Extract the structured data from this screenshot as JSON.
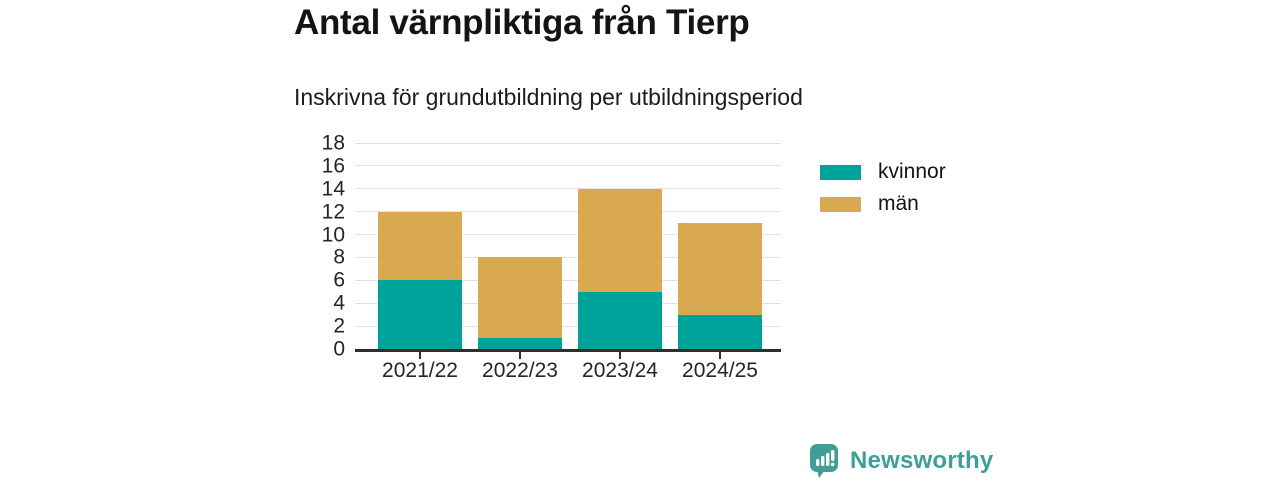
{
  "header": {
    "title": "Antal värnpliktiga från Tierp",
    "subtitle": "Inskrivna för grundutbildning per utbildningsperiod"
  },
  "chart_data": {
    "type": "bar",
    "stacked": true,
    "title": "Antal värnpliktiga från Tierp",
    "subtitle": "Inskrivna för grundutbildning per utbildningsperiod",
    "categories": [
      "2021/22",
      "2022/23",
      "2023/24",
      "2024/25"
    ],
    "series": [
      {
        "name": "kvinnor",
        "color": "#00a399",
        "values": [
          6,
          1,
          5,
          3
        ]
      },
      {
        "name": "män",
        "color": "#d9a952",
        "values": [
          6,
          7,
          9,
          8
        ]
      }
    ],
    "stack_totals": [
      12,
      8,
      14,
      11
    ],
    "xlabel": "",
    "ylabel": "",
    "ylim": [
      0,
      18
    ],
    "ytick_step": 2,
    "grid": "horizontal",
    "legend_position": "right"
  },
  "footer": {
    "brand": "Newsworthy"
  },
  "colors": {
    "axis_line": "#2e2e2e",
    "gridline": "#e1e1e6",
    "text_dark": "#141414",
    "axis_text": "#262626",
    "brand_teal": "#3f9f97",
    "series_kvinnor": "#00a399",
    "series_man": "#d9a952"
  }
}
